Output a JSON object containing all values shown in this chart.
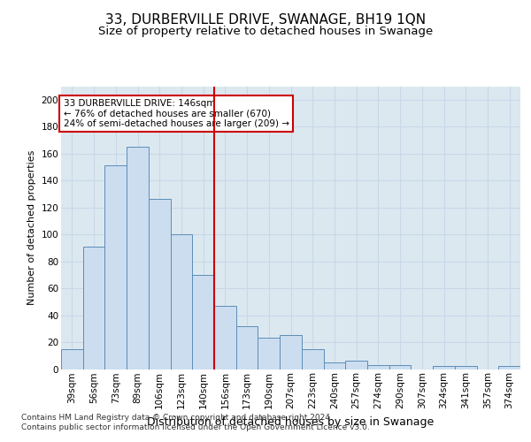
{
  "title": "33, DURBERVILLE DRIVE, SWANAGE, BH19 1QN",
  "subtitle": "Size of property relative to detached houses in Swanage",
  "xlabel": "Distribution of detached houses by size in Swanage",
  "ylabel": "Number of detached properties",
  "categories": [
    "39sqm",
    "56sqm",
    "73sqm",
    "89sqm",
    "106sqm",
    "123sqm",
    "140sqm",
    "156sqm",
    "173sqm",
    "190sqm",
    "207sqm",
    "223sqm",
    "240sqm",
    "257sqm",
    "274sqm",
    "290sqm",
    "307sqm",
    "324sqm",
    "341sqm",
    "357sqm",
    "374sqm"
  ],
  "values": [
    15,
    91,
    151,
    165,
    126,
    100,
    70,
    47,
    32,
    23,
    25,
    15,
    5,
    6,
    3,
    3,
    0,
    2,
    2,
    0,
    2
  ],
  "bar_color": "#ccddf0",
  "bar_edge_color": "#5b8db8",
  "vline_x_index": 6.5,
  "vline_color": "#cc0000",
  "annotation_box_text": "33 DURBERVILLE DRIVE: 146sqm\n← 76% of detached houses are smaller (670)\n24% of semi-detached houses are larger (209) →",
  "annotation_box_color": "#cc0000",
  "ylim": [
    0,
    210
  ],
  "yticks": [
    0,
    20,
    40,
    60,
    80,
    100,
    120,
    140,
    160,
    180,
    200
  ],
  "grid_color": "#c8d8e8",
  "background_color": "#dce8f0",
  "footer_text": "Contains HM Land Registry data © Crown copyright and database right 2024.\nContains public sector information licensed under the Open Government Licence v3.0.",
  "title_fontsize": 11,
  "subtitle_fontsize": 9.5,
  "xlabel_fontsize": 9,
  "ylabel_fontsize": 8,
  "tick_fontsize": 7.5,
  "annotation_fontsize": 7.5,
  "footer_fontsize": 6.5
}
